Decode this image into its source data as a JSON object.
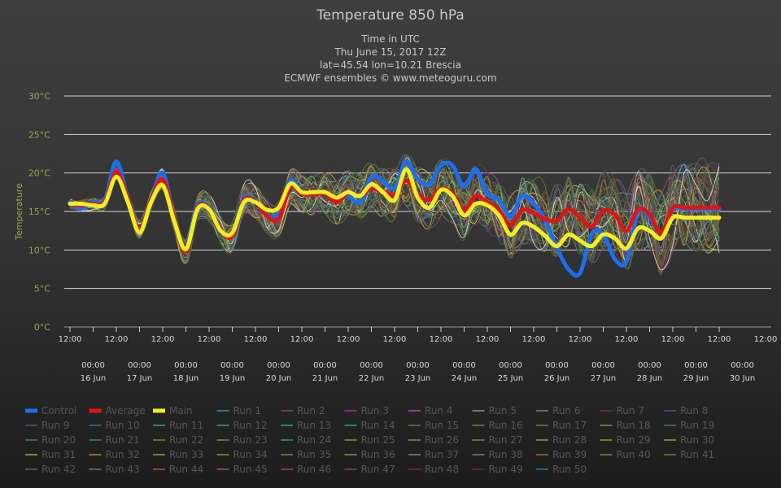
{
  "chart_data": {
    "type": "line",
    "title": "Temperature 850 hPa",
    "subtitles": [
      "Time in UTC",
      "Thu June 15, 2017 12Z",
      "lat=45.54 lon=10.21 Brescia",
      "ECMWF ensembles © www.meteoguru.com"
    ],
    "ylabel": "Temperature",
    "ylim": [
      0,
      30
    ],
    "y_ticks": [
      "0°C",
      "5°C",
      "10°C",
      "15°C",
      "20°C",
      "25°C",
      "30°C"
    ],
    "x_tick_labels": [
      "12:00",
      "12:00",
      "12:00",
      "12:00",
      "12:00",
      "12:00",
      "12:00",
      "12:00",
      "12:00",
      "12:00",
      "12:00",
      "12:00",
      "12:00",
      "12:00",
      "12:00",
      "12:00"
    ],
    "day_labels": [
      {
        "time": "00:00",
        "date": "16 Jun"
      },
      {
        "time": "00:00",
        "date": "17 Jun"
      },
      {
        "time": "00:00",
        "date": "18 Jun"
      },
      {
        "time": "00:00",
        "date": "19 Jun"
      },
      {
        "time": "00:00",
        "date": "20 Jun"
      },
      {
        "time": "00:00",
        "date": "21 Jun"
      },
      {
        "time": "00:00",
        "date": "22 Jun"
      },
      {
        "time": "00:00",
        "date": "23 Jun"
      },
      {
        "time": "00:00",
        "date": "24 Jun"
      },
      {
        "time": "00:00",
        "date": "25 Jun"
      },
      {
        "time": "00:00",
        "date": "26 Jun"
      },
      {
        "time": "00:00",
        "date": "27 Jun"
      },
      {
        "time": "00:00",
        "date": "28 Jun"
      },
      {
        "time": "00:00",
        "date": "29 Jun"
      },
      {
        "time": "00:00",
        "date": "30 Jun"
      }
    ],
    "x_hours": [
      0,
      6,
      12,
      18,
      24,
      30,
      36,
      42,
      48,
      54,
      60,
      66,
      72,
      78,
      84,
      90,
      96,
      102,
      108,
      114,
      120,
      126,
      132,
      138,
      144,
      150,
      156,
      162,
      168,
      174,
      180,
      186,
      192,
      198,
      204,
      210,
      216,
      222,
      228,
      234,
      240,
      246,
      252,
      258,
      264,
      270,
      276,
      282,
      288,
      294,
      300,
      306,
      312,
      318,
      324,
      330,
      336
    ],
    "grid": true,
    "legend_position": "bottom",
    "series": [
      {
        "name": "Control",
        "color": "#1a6ff0",
        "width": 5,
        "values": [
          16.2,
          15.4,
          16.2,
          16.5,
          21.5,
          16.5,
          12.7,
          16.5,
          20.0,
          13.8,
          10.1,
          15.8,
          15.5,
          12.6,
          12.0,
          16.8,
          16.2,
          14.5,
          14.8,
          19.0,
          17.5,
          17.2,
          17.5,
          16.5,
          17.0,
          16.2,
          19.5,
          19.0,
          18.0,
          21.5,
          19.2,
          18.5,
          21.0,
          21.0,
          18.2,
          20.5,
          17.3,
          16.5,
          14.3,
          17.0,
          16.0,
          13.8,
          10.3,
          7.5,
          7.0,
          12.1,
          12.0,
          8.8,
          8.5,
          15.0,
          14.2,
          12.2,
          15.3,
          15.3,
          15.3,
          15.3,
          15.3
        ]
      },
      {
        "name": "Average",
        "color": "#e01414",
        "width": 5,
        "values": [
          16.0,
          15.8,
          16.0,
          16.2,
          20.2,
          16.5,
          12.7,
          16.4,
          19.2,
          13.9,
          9.8,
          15.5,
          15.4,
          12.6,
          11.8,
          16.5,
          16.2,
          14.4,
          14.0,
          18.2,
          17.3,
          17.2,
          17.3,
          16.2,
          17.4,
          17.0,
          18.0,
          17.6,
          17.2,
          19.0,
          17.2,
          16.5,
          18.0,
          17.3,
          15.2,
          17.0,
          16.2,
          15.2,
          13.2,
          15.2,
          14.8,
          14.0,
          13.8,
          15.3,
          14.2,
          13.0,
          15.1,
          14.6,
          12.5,
          15.3,
          14.6,
          12.2,
          15.5,
          15.5,
          15.5,
          15.5,
          15.5
        ]
      },
      {
        "name": "Main",
        "color": "#f2ee22",
        "width": 5,
        "values": [
          16.0,
          16.0,
          15.8,
          16.0,
          19.5,
          16.2,
          12.3,
          16.2,
          18.4,
          13.7,
          10.1,
          15.3,
          15.3,
          12.5,
          12.2,
          16.2,
          16.2,
          15.2,
          15.5,
          18.6,
          17.5,
          17.5,
          17.5,
          16.8,
          17.5,
          17.0,
          18.5,
          17.5,
          16.5,
          20.5,
          16.8,
          15.5,
          17.8,
          17.0,
          14.5,
          16.0,
          15.8,
          14.5,
          12.0,
          13.5,
          13.0,
          11.8,
          10.5,
          12.0,
          11.2,
          10.5,
          12.0,
          11.5,
          10.2,
          12.8,
          12.5,
          11.5,
          14.2,
          14.2,
          14.2,
          14.2,
          14.2
        ]
      }
    ],
    "runs_legend": [
      {
        "name": "Run 1",
        "color": "#3b6d8a"
      },
      {
        "name": "Run 2",
        "color": "#6e3d4a"
      },
      {
        "name": "Run 3",
        "color": "#7a2f7a"
      },
      {
        "name": "Run 4",
        "color": "#8c3d8c"
      },
      {
        "name": "Run 5",
        "color": "#777777"
      },
      {
        "name": "Run 6",
        "color": "#7a5c7a"
      },
      {
        "name": "Run 7",
        "color": "#6a2b2b"
      },
      {
        "name": "Run 8",
        "color": "#4a3d7a"
      },
      {
        "name": "Run 9",
        "color": "#2d4f6a"
      },
      {
        "name": "Run 10",
        "color": "#2f5e7a"
      },
      {
        "name": "Run 11",
        "color": "#3d7a6e"
      },
      {
        "name": "Run 12",
        "color": "#3d6e7a"
      },
      {
        "name": "Run 13",
        "color": "#3d7a72"
      },
      {
        "name": "Run 14",
        "color": "#2f7a7a"
      },
      {
        "name": "Run 15",
        "color": "#4a6a3d"
      },
      {
        "name": "Run 16",
        "color": "#5e6a2f"
      },
      {
        "name": "Run 17",
        "color": "#4f6a2f"
      },
      {
        "name": "Run 18",
        "color": "#5a7a3d"
      },
      {
        "name": "Run 19",
        "color": "#3d5e5e"
      },
      {
        "name": "Run 20",
        "color": "#3d6a3d"
      },
      {
        "name": "Run 21",
        "color": "#3d6a5e"
      },
      {
        "name": "Run 22",
        "color": "#4a7a2f"
      },
      {
        "name": "Run 23",
        "color": "#4f7a3d"
      },
      {
        "name": "Run 24",
        "color": "#3d7a4a"
      },
      {
        "name": "Run 25",
        "color": "#6a7a3d"
      },
      {
        "name": "Run 26",
        "color": "#5e7a4a"
      },
      {
        "name": "Run 27",
        "color": "#6a6a3d"
      },
      {
        "name": "Run 28",
        "color": "#7a7a4a"
      },
      {
        "name": "Run 29",
        "color": "#7a7a3d"
      },
      {
        "name": "Run 30",
        "color": "#8a7a3d"
      },
      {
        "name": "Run 31",
        "color": "#7a8a4a"
      },
      {
        "name": "Run 32",
        "color": "#8a6a3d"
      },
      {
        "name": "Run 33",
        "color": "#8a7a4a"
      },
      {
        "name": "Run 34",
        "color": "#6a7a2f"
      },
      {
        "name": "Run 35",
        "color": "#7a5e3d"
      },
      {
        "name": "Run 36",
        "color": "#7a6a4a"
      },
      {
        "name": "Run 37",
        "color": "#6a6a5e"
      },
      {
        "name": "Run 38",
        "color": "#5e6a5e"
      },
      {
        "name": "Run 39",
        "color": "#7a5e2f"
      },
      {
        "name": "Run 40",
        "color": "#6a6a3d"
      },
      {
        "name": "Run 41",
        "color": "#5e5e3d"
      },
      {
        "name": "Run 42",
        "color": "#5e4a3d"
      },
      {
        "name": "Run 43",
        "color": "#5e5e3d"
      },
      {
        "name": "Run 44",
        "color": "#7a4a2f"
      },
      {
        "name": "Run 45",
        "color": "#7a4a3d"
      },
      {
        "name": "Run 46",
        "color": "#7a3d3d"
      },
      {
        "name": "Run 47",
        "color": "#6a3d3d"
      },
      {
        "name": "Run 48",
        "color": "#6a1f2f"
      },
      {
        "name": "Run 49",
        "color": "#5e1f3d"
      },
      {
        "name": "Run 50",
        "color": "#2f5e7a"
      }
    ]
  }
}
